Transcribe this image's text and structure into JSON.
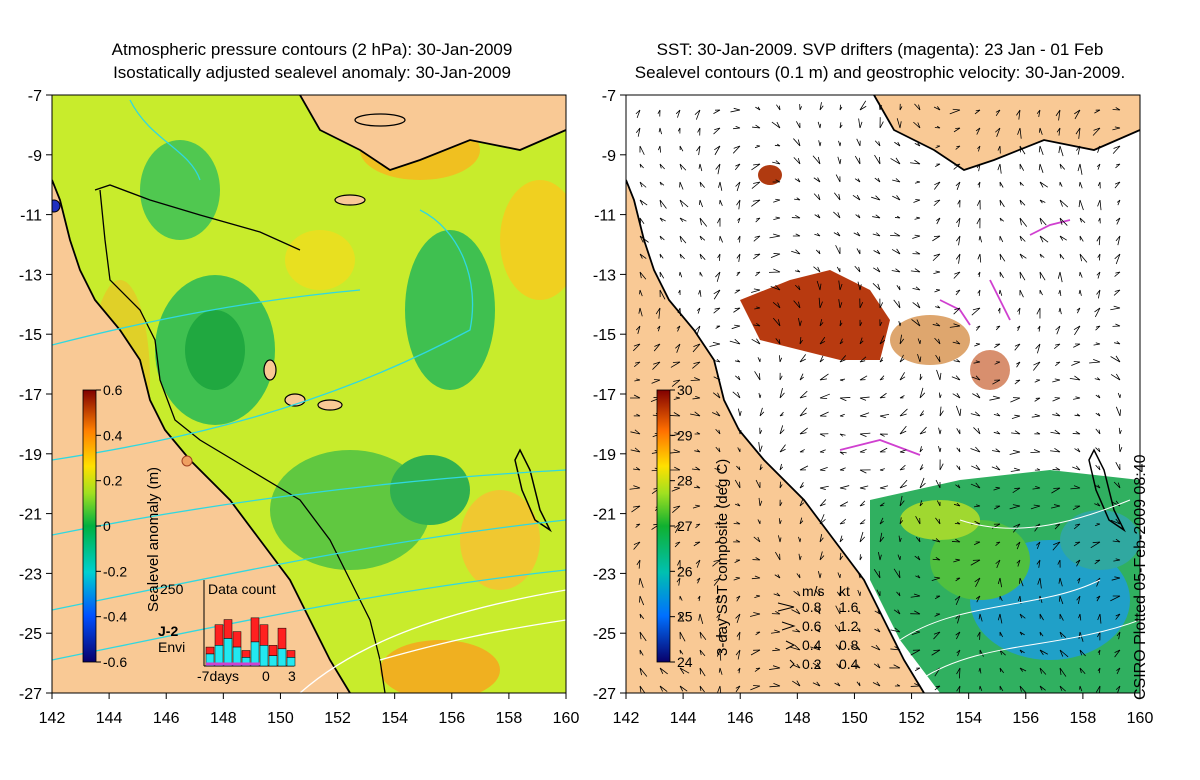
{
  "left_panel": {
    "title_line1": "Atmospheric pressure contours (2 hPa): 30-Jan-2009",
    "title_line2": "Isostatically adjusted sealevel anomaly: 30-Jan-2009",
    "colorbar": {
      "label": "Sealevel anomaly (m)",
      "ticks": [
        "0.6",
        "0.4",
        "0.2",
        "0",
        "-0.2",
        "-0.4",
        "-0.6"
      ],
      "range": [
        -0.6,
        0.6
      ]
    },
    "data_count": {
      "title": "Data count",
      "ymax_label": "250",
      "series": [
        "J-2",
        "Envi"
      ],
      "series_colors": [
        "#ff2020",
        "#22e8f0"
      ],
      "x_labels": [
        "-7days",
        "0",
        "3"
      ],
      "values_total": [
        55,
        120,
        135,
        100,
        45,
        140,
        120,
        60,
        110,
        45
      ],
      "values_envi": [
        35,
        60,
        80,
        55,
        25,
        70,
        60,
        30,
        50,
        25
      ]
    }
  },
  "right_panel": {
    "title_line1": "SST: 30-Jan-2009. SVP drifters (magenta): 23 Jan - 01 Feb",
    "title_line2": "Sealevel contours (0.1 m) and geostrophic velocity: 30-Jan-2009.",
    "colorbar": {
      "label": "3-day SST composite (deg C)",
      "ticks": [
        "30",
        "29",
        "28",
        "27",
        "26",
        "25",
        "24"
      ],
      "range": [
        24,
        30
      ]
    },
    "velocity_legend": {
      "header_ms": "m/s",
      "header_kt": "kt",
      "rows": [
        {
          "ms": "0.8",
          "kt": "1.6"
        },
        {
          "ms": "0.6",
          "kt": "1.2"
        },
        {
          "ms": "0.4",
          "kt": "0.8"
        },
        {
          "ms": "0.2",
          "kt": "0.4"
        }
      ]
    }
  },
  "axes": {
    "lon_ticks": [
      "142",
      "144",
      "146",
      "148",
      "150",
      "152",
      "154",
      "156",
      "158",
      "160"
    ],
    "lat_ticks": [
      "-7",
      "-9",
      "-11",
      "-13",
      "-15",
      "-17",
      "-19",
      "-21",
      "-23",
      "-25",
      "-27"
    ]
  },
  "credit": "CSIRO Plotted 05-Feb-2009 08:40",
  "colors": {
    "land": "#f9c995",
    "sla_mid": "#c8f028",
    "sst_missing": "#ffffff",
    "drifter": "#d040d0",
    "contour": "#30d8e0"
  }
}
